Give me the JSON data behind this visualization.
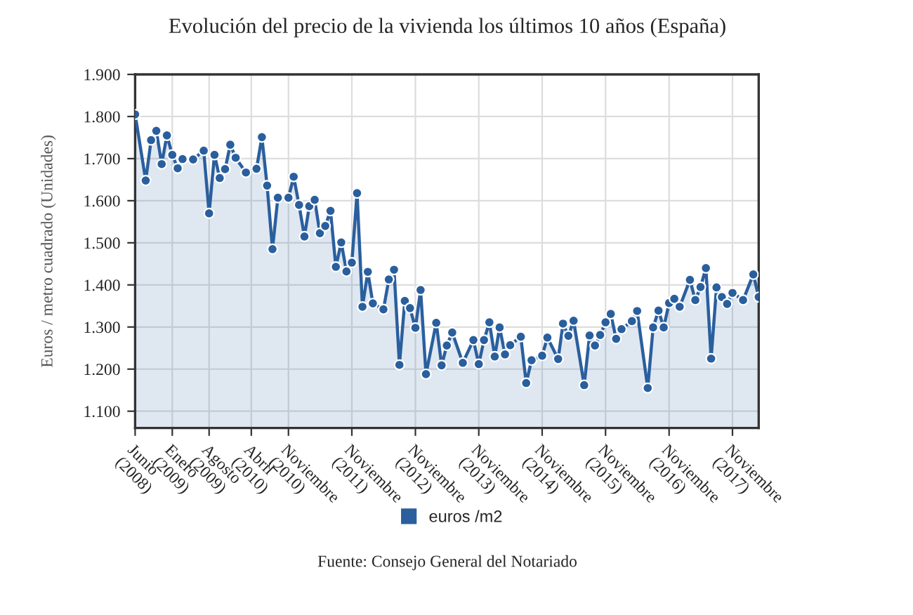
{
  "chart_data": {
    "type": "area",
    "title": "Evolución del precio de la vivienda los últimos 10 años (España)",
    "ylabel": "Euros / metro cuadrado (Unidades)",
    "annotations": [
      "Fuente: Consejo General del Notariado"
    ],
    "x": [
      "2008-06",
      "2008-08",
      "2008-09",
      "2008-10",
      "2008-11",
      "2008-12",
      "2009-01",
      "2009-02",
      "2009-03",
      "2009-05",
      "2009-07",
      "2009-08",
      "2009-09",
      "2009-10",
      "2009-11",
      "2009-12",
      "2010-01",
      "2010-03",
      "2010-05",
      "2010-06",
      "2010-07",
      "2010-08",
      "2010-09",
      "2010-11",
      "2010-12",
      "2011-01",
      "2011-02",
      "2011-03",
      "2011-04",
      "2011-05",
      "2011-06",
      "2011-07",
      "2011-08",
      "2011-09",
      "2011-10",
      "2011-11",
      "2011-12",
      "2012-01",
      "2012-02",
      "2012-03",
      "2012-05",
      "2012-06",
      "2012-07",
      "2012-08",
      "2012-09",
      "2012-10",
      "2012-11",
      "2012-12",
      "2013-01",
      "2013-03",
      "2013-04",
      "2013-05",
      "2013-06",
      "2013-08",
      "2013-10",
      "2013-11",
      "2013-12",
      "2014-01",
      "2014-02",
      "2014-03",
      "2014-04",
      "2014-05",
      "2014-07",
      "2014-08",
      "2014-09",
      "2014-11",
      "2014-12",
      "2015-02",
      "2015-03",
      "2015-04",
      "2015-05",
      "2015-07",
      "2015-08",
      "2015-09",
      "2015-10",
      "2015-11",
      "2015-12",
      "2016-01",
      "2016-02",
      "2016-04",
      "2016-05",
      "2016-07",
      "2016-08",
      "2016-09",
      "2016-10",
      "2016-11",
      "2016-12",
      "2017-01",
      "2017-03",
      "2017-04",
      "2017-05",
      "2017-06",
      "2017-07",
      "2017-08",
      "2017-09",
      "2017-10",
      "2017-11",
      "2018-01",
      "2018-03",
      "2018-04"
    ],
    "series": [
      {
        "name": "euros /m2",
        "color": "#2a5f9e",
        "values": [
          1.805,
          1.648,
          1.744,
          1.766,
          1.687,
          1.755,
          1.709,
          1.677,
          1.699,
          1.698,
          1.719,
          1.57,
          1.709,
          1.654,
          1.675,
          1.733,
          1.702,
          1.667,
          1.676,
          1.751,
          1.636,
          1.485,
          1.607,
          1.607,
          1.657,
          1.59,
          1.515,
          1.587,
          1.602,
          1.523,
          1.54,
          1.576,
          1.443,
          1.501,
          1.432,
          1.453,
          1.618,
          1.348,
          1.431,
          1.356,
          1.342,
          1.413,
          1.436,
          1.21,
          1.362,
          1.345,
          1.298,
          1.388,
          1.188,
          1.31,
          1.209,
          1.256,
          1.287,
          1.215,
          1.269,
          1.212,
          1.269,
          1.311,
          1.23,
          1.299,
          1.235,
          1.257,
          1.277,
          1.167,
          1.221,
          1.232,
          1.275,
          1.224,
          1.308,
          1.279,
          1.315,
          1.162,
          1.28,
          1.256,
          1.281,
          1.311,
          1.331,
          1.272,
          1.295,
          1.314,
          1.338,
          1.155,
          1.299,
          1.339,
          1.299,
          1.357,
          1.367,
          1.348,
          1.412,
          1.364,
          1.395,
          1.44,
          1.225,
          1.394,
          1.371,
          1.355,
          1.381,
          1.364,
          1.425,
          1.371
        ]
      }
    ],
    "xlim": [
      "2008-06",
      "2018-04"
    ],
    "xticks": [
      {
        "value": "2008-06",
        "label": "Junio (2008)"
      },
      {
        "value": "2009-01",
        "label": "Enero (2009)"
      },
      {
        "value": "2009-08",
        "label": "Agosto (2009)"
      },
      {
        "value": "2010-04",
        "label": "Abril (2010)"
      },
      {
        "value": "2010-11",
        "label": "Noviembre (2010)"
      },
      {
        "value": "2011-11",
        "label": "Noviembre (2011)"
      },
      {
        "value": "2012-11",
        "label": "Noviembre (2012)"
      },
      {
        "value": "2013-11",
        "label": "Noviembre (2013)"
      },
      {
        "value": "2014-11",
        "label": "Noviembre (2014)"
      },
      {
        "value": "2015-11",
        "label": "Noviembre (2015)"
      },
      {
        "value": "2016-11",
        "label": "Noviembre (2016)"
      },
      {
        "value": "2017-11",
        "label": "Noviembre (2017)"
      }
    ],
    "ylim": [
      1.06,
      1.9
    ],
    "yticks": [
      {
        "value": 1.1,
        "label": "1.100"
      },
      {
        "value": 1.2,
        "label": "1.200"
      },
      {
        "value": 1.3,
        "label": "1.300"
      },
      {
        "value": 1.4,
        "label": "1.400"
      },
      {
        "value": 1.5,
        "label": "1.500"
      },
      {
        "value": 1.6,
        "label": "1.600"
      },
      {
        "value": 1.7,
        "label": "1.700"
      },
      {
        "value": 1.8,
        "label": "1.800"
      },
      {
        "value": 1.9,
        "label": "1.900"
      }
    ],
    "grid": true,
    "legend": "bottom",
    "marker": "circle",
    "line_style": "solid"
  }
}
